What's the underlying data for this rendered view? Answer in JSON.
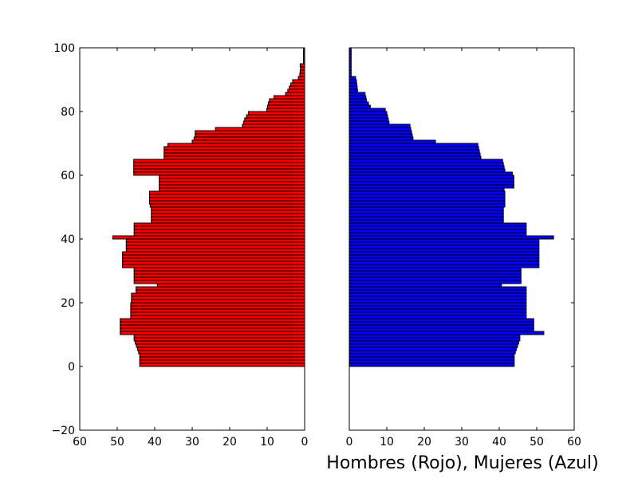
{
  "chart_data": {
    "type": "bar",
    "orientation": "horizontal",
    "layout": "population-pyramid",
    "xlabel": "Hombres (Rojo), Mujeres (Azul)",
    "ylim": [
      -20,
      100
    ],
    "yticks": [
      -20,
      0,
      20,
      40,
      60,
      80,
      100
    ],
    "ytick_labels": [
      "−20",
      "0",
      "20",
      "40",
      "60",
      "80",
      "100"
    ],
    "xticks": [
      0,
      10,
      20,
      30,
      40,
      50,
      60
    ],
    "xtick_labels": [
      "0",
      "10",
      "20",
      "30",
      "40",
      "50",
      "60"
    ],
    "grid": false,
    "legend": "none",
    "series": [
      {
        "name": "Hombres (Rojo)",
        "color": "#ff0000",
        "side": "left",
        "xlim": [
          60,
          0
        ],
        "ages": [
          0,
          1,
          2,
          3,
          4,
          5,
          6,
          7,
          8,
          9,
          10,
          11,
          12,
          13,
          14,
          15,
          16,
          17,
          18,
          19,
          20,
          21,
          22,
          23,
          24,
          25,
          26,
          27,
          28,
          29,
          30,
          31,
          32,
          33,
          34,
          35,
          36,
          37,
          38,
          39,
          40,
          41,
          42,
          43,
          44,
          45,
          46,
          47,
          48,
          49,
          50,
          51,
          52,
          53,
          54,
          55,
          56,
          57,
          58,
          59,
          60,
          61,
          62,
          63,
          64,
          65,
          66,
          67,
          68,
          69,
          70,
          71,
          72,
          73,
          74,
          75,
          76,
          77,
          78,
          79,
          80,
          81,
          82,
          83,
          84,
          85,
          86,
          87,
          88,
          89,
          90,
          91,
          92,
          93,
          94,
          95,
          96,
          97,
          98,
          99
        ],
        "values": [
          44,
          44,
          44,
          44,
          44.3,
          44.6,
          44.9,
          45.2,
          45.5,
          45.5,
          49.2,
          49.2,
          49.2,
          49.2,
          49.2,
          46.4,
          46.4,
          46.4,
          46.4,
          46.4,
          46.2,
          46.2,
          46.2,
          45,
          45,
          39.3,
          45.5,
          45.5,
          45.5,
          45.5,
          45.5,
          48.6,
          48.6,
          48.6,
          48.6,
          48.6,
          47.6,
          47.6,
          47.6,
          47.6,
          51.2,
          45.5,
          45.5,
          45.5,
          45.5,
          40.9,
          40.9,
          40.9,
          40.9,
          40.9,
          41.2,
          41.4,
          41.4,
          41.4,
          41.4,
          38.8,
          38.8,
          38.8,
          38.8,
          38.8,
          45.6,
          45.6,
          45.6,
          45.6,
          45.6,
          37.5,
          37.5,
          37.5,
          37.5,
          36.5,
          30,
          29.5,
          29.2,
          29.2,
          23.8,
          16.6,
          16.3,
          16,
          15.5,
          15,
          10.1,
          9.9,
          9.7,
          9.4,
          8.2,
          5.1,
          4.5,
          4.1,
          3.7,
          3.2,
          1.7,
          1.3,
          1.2,
          1.1,
          1.2,
          0.3,
          0.3,
          0.3,
          0.3,
          0.3
        ]
      },
      {
        "name": "Mujeres (Azul)",
        "color": "#0000ff",
        "side": "right",
        "xlim": [
          0,
          60
        ],
        "ages": [
          0,
          1,
          2,
          3,
          4,
          5,
          6,
          7,
          8,
          9,
          10,
          11,
          12,
          13,
          14,
          15,
          16,
          17,
          18,
          19,
          20,
          21,
          22,
          23,
          24,
          25,
          26,
          27,
          28,
          29,
          30,
          31,
          32,
          33,
          34,
          35,
          36,
          37,
          38,
          39,
          40,
          41,
          42,
          43,
          44,
          45,
          46,
          47,
          48,
          49,
          50,
          51,
          52,
          53,
          54,
          55,
          56,
          57,
          58,
          59,
          60,
          61,
          62,
          63,
          64,
          65,
          66,
          67,
          68,
          69,
          70,
          71,
          72,
          73,
          74,
          75,
          76,
          77,
          78,
          79,
          80,
          81,
          82,
          83,
          84,
          85,
          86,
          87,
          88,
          89,
          90,
          91,
          92,
          93,
          94,
          95,
          96,
          97,
          98,
          99
        ],
        "values": [
          44,
          44,
          44,
          44,
          44.3,
          44.6,
          44.9,
          45.2,
          45.5,
          45.5,
          51.9,
          49.2,
          49.2,
          49.2,
          49.2,
          47.2,
          47.2,
          47.2,
          47.2,
          47.2,
          47.2,
          47.2,
          47.2,
          47.2,
          47.2,
          40.6,
          45.8,
          45.8,
          45.8,
          45.8,
          45.8,
          50.6,
          50.6,
          50.6,
          50.6,
          50.6,
          50.6,
          50.6,
          50.6,
          50.6,
          54.5,
          47.2,
          47.2,
          47.2,
          47.2,
          41.1,
          41.1,
          41.1,
          41.1,
          41.1,
          41.5,
          41.5,
          41.5,
          41.5,
          41.5,
          41.3,
          43.9,
          43.9,
          43.9,
          43.9,
          43.5,
          41.5,
          41.3,
          41.1,
          40.9,
          35.1,
          34.9,
          34.7,
          34.5,
          34.3,
          23,
          17,
          16.8,
          16.6,
          16.4,
          16.2,
          10.6,
          10.4,
          10.2,
          10,
          9.6,
          5.6,
          5.1,
          4.6,
          4.4,
          4.2,
          2.2,
          2.1,
          2,
          1.9,
          1.7,
          0.5,
          0.5,
          0.5,
          0.5,
          0.5,
          0.5,
          0.5,
          0.5,
          0.5
        ]
      }
    ]
  }
}
